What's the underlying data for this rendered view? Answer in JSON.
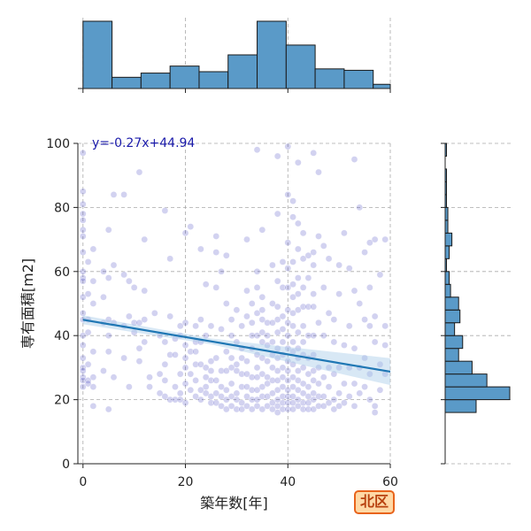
{
  "chart_data": {
    "type": "scatter",
    "xlabel": "築年数[年]",
    "ylabel": "専有面積[m2]",
    "xlim": [
      -1,
      60
    ],
    "ylim": [
      0,
      100
    ],
    "x_ticks": [
      0,
      20,
      40,
      60
    ],
    "y_ticks": [
      0,
      20,
      40,
      60,
      80,
      100
    ],
    "grid": true,
    "point_color": "#3333bb",
    "regression": {
      "equation": "y=-0.27x+44.94",
      "slope": -0.27,
      "intercept": 44.94,
      "line_color": "#1f77b4",
      "band_color": "#a8cde8",
      "equation_color": "#1a1aaa"
    },
    "points": [
      [
        0,
        97
      ],
      [
        0,
        85
      ],
      [
        0,
        81
      ],
      [
        0,
        78
      ],
      [
        0,
        76
      ],
      [
        0,
        73
      ],
      [
        0,
        71
      ],
      [
        0,
        66
      ],
      [
        0,
        60
      ],
      [
        0,
        58
      ],
      [
        0,
        57
      ],
      [
        0,
        52
      ],
      [
        0,
        47
      ],
      [
        0,
        45
      ],
      [
        0,
        40
      ],
      [
        0,
        37
      ],
      [
        0,
        33
      ],
      [
        0,
        30
      ],
      [
        0,
        29
      ],
      [
        0,
        27
      ],
      [
        0,
        26
      ],
      [
        0,
        24
      ],
      [
        1,
        63
      ],
      [
        1,
        53
      ],
      [
        1,
        45
      ],
      [
        1,
        41
      ],
      [
        1,
        31
      ],
      [
        1,
        26
      ],
      [
        1,
        25
      ],
      [
        2,
        67
      ],
      [
        2,
        57
      ],
      [
        2,
        50
      ],
      [
        2,
        35
      ],
      [
        2,
        27
      ],
      [
        2,
        24
      ],
      [
        2,
        18
      ],
      [
        4,
        60
      ],
      [
        4,
        52
      ],
      [
        4,
        44
      ],
      [
        4,
        29
      ],
      [
        5,
        73
      ],
      [
        5,
        58
      ],
      [
        5,
        45
      ],
      [
        5,
        40
      ],
      [
        5,
        35
      ],
      [
        5,
        17
      ],
      [
        6,
        84
      ],
      [
        6,
        62
      ],
      [
        6,
        44
      ],
      [
        6,
        27
      ],
      [
        8,
        84
      ],
      [
        8,
        59
      ],
      [
        8,
        43
      ],
      [
        8,
        33
      ],
      [
        9,
        57
      ],
      [
        9,
        46
      ],
      [
        9,
        24
      ],
      [
        10,
        55
      ],
      [
        10,
        44
      ],
      [
        10,
        41
      ],
      [
        11,
        91
      ],
      [
        11,
        44
      ],
      [
        11,
        36
      ],
      [
        11,
        32
      ],
      [
        12,
        70
      ],
      [
        12,
        54
      ],
      [
        12,
        45
      ],
      [
        12,
        38
      ],
      [
        13,
        27
      ],
      [
        13,
        24
      ],
      [
        14,
        47
      ],
      [
        15,
        40
      ],
      [
        15,
        28
      ],
      [
        15,
        22
      ],
      [
        16,
        79
      ],
      [
        16,
        38
      ],
      [
        16,
        31
      ],
      [
        16,
        26
      ],
      [
        16,
        21
      ],
      [
        17,
        64
      ],
      [
        17,
        46
      ],
      [
        17,
        34
      ],
      [
        17,
        20
      ],
      [
        18,
        39
      ],
      [
        18,
        34
      ],
      [
        18,
        24
      ],
      [
        18,
        20
      ],
      [
        19,
        43
      ],
      [
        19,
        40
      ],
      [
        19,
        28
      ],
      [
        19,
        22
      ],
      [
        19,
        20
      ],
      [
        20,
        72
      ],
      [
        20,
        44
      ],
      [
        20,
        37
      ],
      [
        20,
        33
      ],
      [
        20,
        30
      ],
      [
        20,
        25
      ],
      [
        20,
        19
      ],
      [
        21,
        74
      ],
      [
        21,
        35
      ],
      [
        21,
        28
      ],
      [
        21,
        23
      ],
      [
        22,
        43
      ],
      [
        22,
        38
      ],
      [
        22,
        35
      ],
      [
        22,
        31
      ],
      [
        22,
        26
      ],
      [
        22,
        21
      ],
      [
        23,
        67
      ],
      [
        23,
        45
      ],
      [
        23,
        38
      ],
      [
        23,
        31
      ],
      [
        23,
        23
      ],
      [
        23,
        20
      ],
      [
        24,
        56
      ],
      [
        24,
        40
      ],
      [
        24,
        30
      ],
      [
        24,
        27
      ],
      [
        24,
        24
      ],
      [
        24,
        22
      ],
      [
        25,
        43
      ],
      [
        25,
        32
      ],
      [
        25,
        29
      ],
      [
        25,
        26
      ],
      [
        25,
        21
      ],
      [
        25,
        19
      ],
      [
        26,
        71
      ],
      [
        26,
        66
      ],
      [
        26,
        55
      ],
      [
        26,
        33
      ],
      [
        26,
        26
      ],
      [
        26,
        22
      ],
      [
        26,
        19
      ],
      [
        27,
        60
      ],
      [
        27,
        42
      ],
      [
        27,
        29
      ],
      [
        27,
        24
      ],
      [
        27,
        21
      ],
      [
        27,
        18
      ],
      [
        28,
        65
      ],
      [
        28,
        50
      ],
      [
        28,
        35
      ],
      [
        28,
        29
      ],
      [
        28,
        23
      ],
      [
        28,
        20
      ],
      [
        28,
        17
      ],
      [
        29,
        45
      ],
      [
        29,
        40
      ],
      [
        29,
        33
      ],
      [
        29,
        30
      ],
      [
        29,
        25
      ],
      [
        29,
        21
      ],
      [
        29,
        18
      ],
      [
        30,
        48
      ],
      [
        30,
        38
      ],
      [
        30,
        31
      ],
      [
        30,
        29
      ],
      [
        30,
        22
      ],
      [
        30,
        20
      ],
      [
        30,
        17
      ],
      [
        31,
        43
      ],
      [
        31,
        36
      ],
      [
        31,
        33
      ],
      [
        31,
        28
      ],
      [
        31,
        24
      ],
      [
        31,
        19
      ],
      [
        31,
        17
      ],
      [
        32,
        70
      ],
      [
        32,
        54
      ],
      [
        32,
        46
      ],
      [
        32,
        32
      ],
      [
        32,
        28
      ],
      [
        32,
        24
      ],
      [
        32,
        21
      ],
      [
        32,
        18
      ],
      [
        33,
        50
      ],
      [
        33,
        44
      ],
      [
        33,
        40
      ],
      [
        33,
        36
      ],
      [
        33,
        27
      ],
      [
        33,
        23
      ],
      [
        33,
        20
      ],
      [
        33,
        17
      ],
      [
        34,
        98
      ],
      [
        34,
        60
      ],
      [
        34,
        55
      ],
      [
        34,
        47
      ],
      [
        34,
        40
      ],
      [
        34,
        34
      ],
      [
        34,
        30
      ],
      [
        34,
        27
      ],
      [
        34,
        23
      ],
      [
        34,
        20
      ],
      [
        34,
        18
      ],
      [
        35,
        73
      ],
      [
        35,
        52
      ],
      [
        35,
        48
      ],
      [
        35,
        45
      ],
      [
        35,
        41
      ],
      [
        35,
        38
      ],
      [
        35,
        33
      ],
      [
        35,
        28
      ],
      [
        35,
        24
      ],
      [
        35,
        21
      ],
      [
        35,
        17
      ],
      [
        36,
        44
      ],
      [
        36,
        40
      ],
      [
        36,
        37
      ],
      [
        36,
        32
      ],
      [
        36,
        27
      ],
      [
        36,
        25
      ],
      [
        36,
        21
      ],
      [
        36,
        18
      ],
      [
        37,
        62
      ],
      [
        37,
        50
      ],
      [
        37,
        44
      ],
      [
        37,
        38
      ],
      [
        37,
        34
      ],
      [
        37,
        30
      ],
      [
        37,
        26
      ],
      [
        37,
        22
      ],
      [
        37,
        19
      ],
      [
        37,
        17
      ],
      [
        38,
        96
      ],
      [
        38,
        78
      ],
      [
        38,
        57
      ],
      [
        38,
        49
      ],
      [
        38,
        45
      ],
      [
        38,
        41
      ],
      [
        38,
        36
      ],
      [
        38,
        33
      ],
      [
        38,
        29
      ],
      [
        38,
        26
      ],
      [
        38,
        23
      ],
      [
        38,
        20
      ],
      [
        38,
        18
      ],
      [
        38,
        16
      ],
      [
        39,
        63
      ],
      [
        39,
        55
      ],
      [
        39,
        46
      ],
      [
        39,
        42
      ],
      [
        39,
        38
      ],
      [
        39,
        34
      ],
      [
        39,
        30
      ],
      [
        39,
        27
      ],
      [
        39,
        24
      ],
      [
        39,
        21
      ],
      [
        39,
        19
      ],
      [
        39,
        17
      ],
      [
        40,
        99
      ],
      [
        40,
        84
      ],
      [
        40,
        69
      ],
      [
        40,
        61
      ],
      [
        40,
        55
      ],
      [
        40,
        48
      ],
      [
        40,
        44
      ],
      [
        40,
        40
      ],
      [
        40,
        36
      ],
      [
        40,
        32
      ],
      [
        40,
        29
      ],
      [
        40,
        26
      ],
      [
        40,
        23
      ],
      [
        40,
        21
      ],
      [
        40,
        19
      ],
      [
        40,
        17
      ],
      [
        41,
        82
      ],
      [
        41,
        77
      ],
      [
        41,
        63
      ],
      [
        41,
        56
      ],
      [
        41,
        52
      ],
      [
        41,
        47
      ],
      [
        41,
        43
      ],
      [
        41,
        38
      ],
      [
        41,
        35
      ],
      [
        41,
        31
      ],
      [
        41,
        27
      ],
      [
        41,
        24
      ],
      [
        41,
        21
      ],
      [
        41,
        19
      ],
      [
        41,
        17
      ],
      [
        42,
        94
      ],
      [
        42,
        75
      ],
      [
        42,
        67
      ],
      [
        42,
        58
      ],
      [
        42,
        53
      ],
      [
        42,
        48
      ],
      [
        42,
        41
      ],
      [
        42,
        36
      ],
      [
        42,
        33
      ],
      [
        42,
        29
      ],
      [
        42,
        26
      ],
      [
        42,
        23
      ],
      [
        42,
        20
      ],
      [
        42,
        18
      ],
      [
        43,
        72
      ],
      [
        43,
        64
      ],
      [
        43,
        55
      ],
      [
        43,
        49
      ],
      [
        43,
        43
      ],
      [
        43,
        38
      ],
      [
        43,
        34
      ],
      [
        43,
        30
      ],
      [
        43,
        25
      ],
      [
        43,
        22
      ],
      [
        43,
        19
      ],
      [
        43,
        17
      ],
      [
        44,
        65
      ],
      [
        44,
        58
      ],
      [
        44,
        49
      ],
      [
        44,
        40
      ],
      [
        44,
        33
      ],
      [
        44,
        28
      ],
      [
        44,
        24
      ],
      [
        44,
        21
      ],
      [
        44,
        19
      ],
      [
        44,
        17
      ],
      [
        45,
        97
      ],
      [
        45,
        66
      ],
      [
        45,
        62
      ],
      [
        45,
        53
      ],
      [
        45,
        49
      ],
      [
        45,
        40
      ],
      [
        45,
        34
      ],
      [
        45,
        29
      ],
      [
        45,
        26
      ],
      [
        45,
        22
      ],
      [
        45,
        20
      ],
      [
        45,
        17
      ],
      [
        46,
        91
      ],
      [
        46,
        71
      ],
      [
        46,
        44
      ],
      [
        46,
        30
      ],
      [
        46,
        25
      ],
      [
        46,
        21
      ],
      [
        46,
        18
      ],
      [
        47,
        68
      ],
      [
        47,
        55
      ],
      [
        47,
        40
      ],
      [
        47,
        27
      ],
      [
        47,
        21
      ],
      [
        47,
        18
      ],
      [
        48,
        64
      ],
      [
        48,
        47
      ],
      [
        48,
        30
      ],
      [
        48,
        24
      ],
      [
        48,
        19
      ],
      [
        49,
        45
      ],
      [
        49,
        38
      ],
      [
        49,
        28
      ],
      [
        49,
        20
      ],
      [
        49,
        17
      ],
      [
        50,
        62
      ],
      [
        50,
        53
      ],
      [
        50,
        30
      ],
      [
        50,
        22
      ],
      [
        50,
        18
      ],
      [
        51,
        72
      ],
      [
        51,
        37
      ],
      [
        51,
        25
      ],
      [
        51,
        19
      ],
      [
        52,
        61
      ],
      [
        52,
        43
      ],
      [
        52,
        30
      ],
      [
        52,
        21
      ],
      [
        53,
        95
      ],
      [
        53,
        54
      ],
      [
        53,
        36
      ],
      [
        53,
        25
      ],
      [
        53,
        18
      ],
      [
        54,
        80
      ],
      [
        54,
        50
      ],
      [
        54,
        30
      ],
      [
        54,
        22
      ],
      [
        55,
        66
      ],
      [
        55,
        45
      ],
      [
        55,
        33
      ],
      [
        55,
        24
      ],
      [
        56,
        69
      ],
      [
        56,
        55
      ],
      [
        56,
        43
      ],
      [
        56,
        28
      ],
      [
        56,
        20
      ],
      [
        57,
        70
      ],
      [
        57,
        46
      ],
      [
        57,
        38
      ],
      [
        57,
        18
      ],
      [
        57,
        16
      ],
      [
        58,
        59
      ],
      [
        58,
        31
      ],
      [
        58,
        23
      ],
      [
        59,
        70
      ],
      [
        59,
        43
      ],
      [
        59,
        37
      ],
      [
        59,
        28
      ]
    ],
    "top_histogram": {
      "bins": [
        [
          0,
          5.67
        ],
        [
          5.67,
          11.33
        ],
        [
          11.33,
          17
        ],
        [
          17,
          22.67
        ],
        [
          22.67,
          28.33
        ],
        [
          28.33,
          34
        ],
        [
          34,
          39.67
        ],
        [
          39.67,
          45.33
        ],
        [
          45.33,
          51
        ],
        [
          51,
          56.67
        ],
        [
          56.67,
          62.33
        ]
      ],
      "counts": [
        48,
        8,
        11,
        16,
        12,
        24,
        48,
        31,
        14,
        13,
        3
      ]
    },
    "right_histogram": {
      "bins": [
        [
          16,
          20
        ],
        [
          20,
          24
        ],
        [
          24,
          28
        ],
        [
          28,
          32
        ],
        [
          32,
          36
        ],
        [
          36,
          40
        ],
        [
          40,
          44
        ],
        [
          44,
          48
        ],
        [
          48,
          52
        ],
        [
          52,
          56
        ],
        [
          56,
          60
        ],
        [
          60,
          64
        ],
        [
          64,
          68
        ],
        [
          68,
          72
        ],
        [
          72,
          76
        ],
        [
          76,
          80
        ],
        [
          80,
          84
        ],
        [
          84,
          88
        ],
        [
          88,
          92
        ],
        [
          92,
          96
        ],
        [
          96,
          100
        ]
      ],
      "counts": [
        23,
        48,
        31,
        20,
        10,
        13,
        7,
        11,
        10,
        4,
        3,
        1,
        3,
        5,
        2,
        2,
        1,
        1,
        1,
        0,
        1
      ]
    }
  },
  "badge": {
    "label": "北区"
  }
}
